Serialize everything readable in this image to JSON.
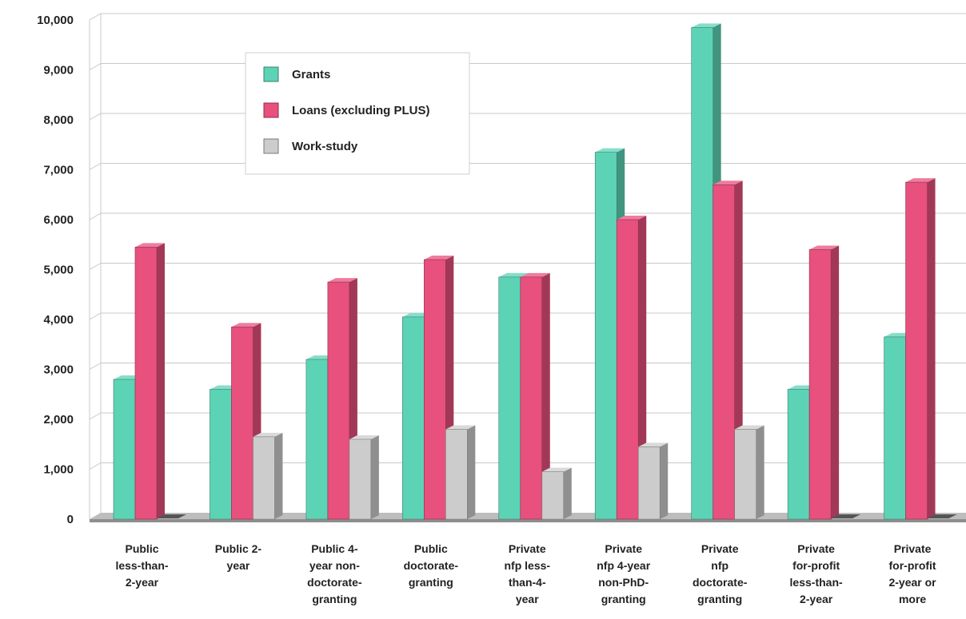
{
  "chart_data": {
    "type": "bar",
    "categories": [
      [
        "Public",
        "less-than-",
        "2-year"
      ],
      [
        "Public 2-",
        "year"
      ],
      [
        "Public 4-",
        "year non-",
        "doctorate-",
        "granting"
      ],
      [
        "Public",
        "doctorate-",
        "granting"
      ],
      [
        "Private",
        "nfp less-",
        "than-4-",
        "year"
      ],
      [
        "Private",
        "nfp 4-year",
        "non-PhD-",
        "granting"
      ],
      [
        "Private",
        "nfp",
        "doctorate-",
        "granting"
      ],
      [
        "Private",
        "for-profit",
        "less-than-",
        "2-year"
      ],
      [
        "Private",
        "for-profit",
        "2-year or",
        "more"
      ]
    ],
    "series": [
      {
        "name": "Grants",
        "values": [
          2800,
          2600,
          3200,
          4050,
          4850,
          7350,
          9850,
          2600,
          3650
        ]
      },
      {
        "name": "Loans (excluding PLUS)",
        "values": [
          5450,
          3850,
          4750,
          5200,
          4850,
          6000,
          6700,
          5400,
          6750
        ]
      },
      {
        "name": "Work-study",
        "values": [
          0,
          1650,
          1600,
          1800,
          950,
          1450,
          1800,
          0,
          0
        ]
      }
    ],
    "ylim": [
      0,
      10000
    ],
    "yticks": [
      "0",
      "1,000",
      "2,000",
      "3,000",
      "4,000",
      "5,000",
      "6,000",
      "7,000",
      "8,000",
      "9,000",
      "10,000"
    ],
    "ylabel": "",
    "grid": true,
    "legend_position": "top-left",
    "colors": {
      "Grants": "#5dd3b6",
      "Loans (excluding PLUS)": "#e8507e",
      "Work-study": "#cccccc"
    }
  }
}
